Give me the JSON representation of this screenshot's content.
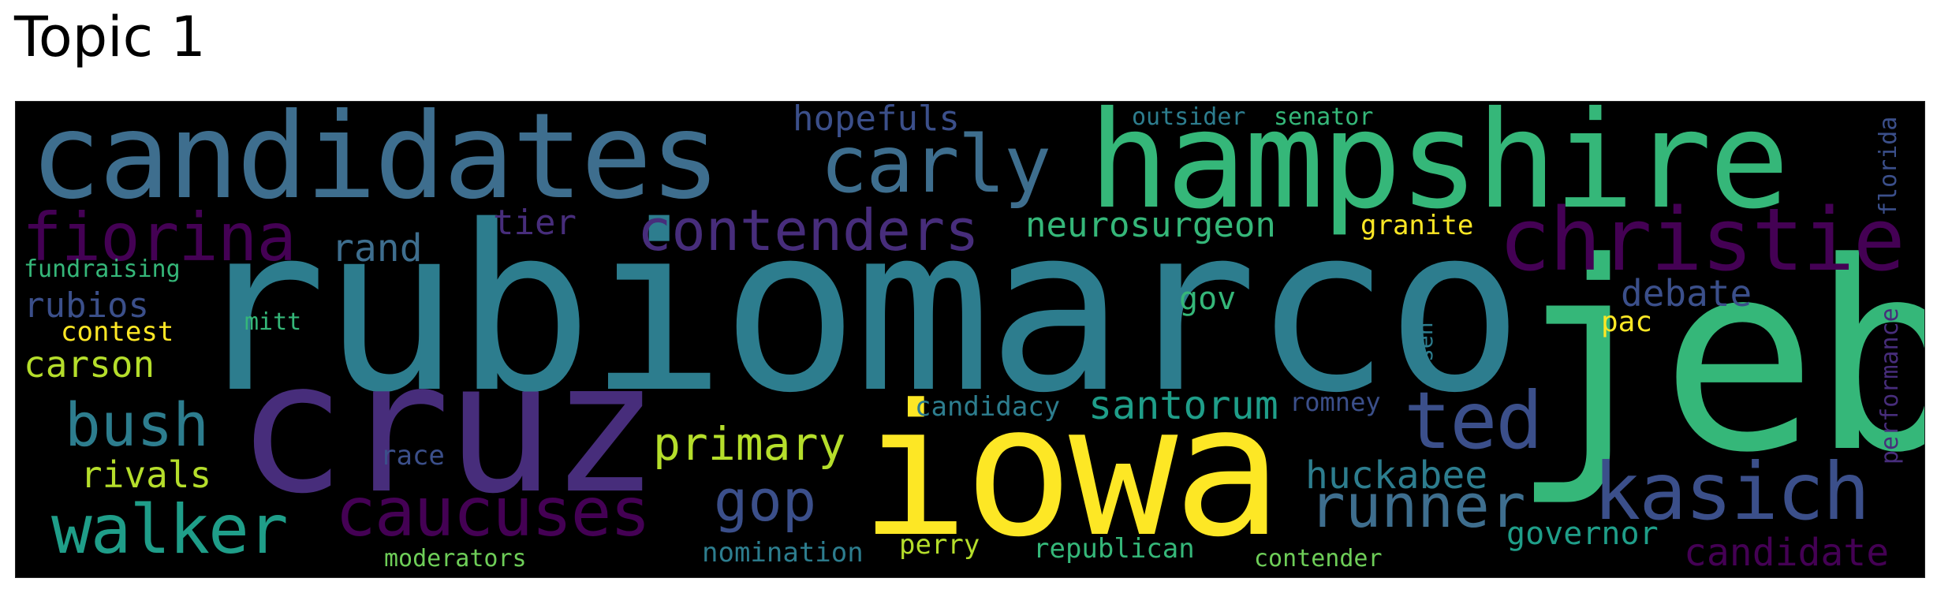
{
  "title": "Topic 1",
  "words": {
    "rubiomarco": "rubiomarco",
    "jeb": "jeb",
    "iowa": "iowa",
    "cruz": "cruz",
    "hampshire": "hampshire",
    "candidates": "candidates",
    "christie": "christie",
    "carly": "carly",
    "kasich": "kasich",
    "contenders": "contenders",
    "fiorina": "fiorina",
    "walker": "walker",
    "caucuses": "caucuses",
    "ted": "ted",
    "runner": "runner",
    "bush": "bush",
    "gop": "gop",
    "primary": "primary",
    "neurosurgeon": "neurosurgeon",
    "santorum": "santorum",
    "huckabee": "huckabee",
    "candidate": "candidate",
    "debate": "debate",
    "carson": "carson",
    "rand": "rand",
    "governor": "governor",
    "rivals": "rivals",
    "hopefuls": "hopefuls",
    "tier": "tier",
    "rubios": "rubios",
    "gov": "gov",
    "nomination": "nomination",
    "republican": "republican",
    "candidacy": "candidacy",
    "contest": "contest",
    "granite": "granite",
    "romney": "romney",
    "perry": "perry",
    "race": "race",
    "fundraising": "fundraising",
    "outsider": "outsider",
    "senator": "senator",
    "moderators": "moderators",
    "contender": "contender",
    "pac": "pac",
    "mitt": "mitt",
    "sen": "sen",
    "florida": "florida",
    "performance": "performance"
  },
  "colors": {
    "dark_purple": "#440154",
    "purple": "#472d7b",
    "indigo": "#3b4f8a",
    "blue": "#3e6e8e",
    "teal": "#2d7d8e",
    "teal_green": "#1f9e89",
    "green": "#35b779",
    "light_green": "#6ece58",
    "yellow_green": "#b5de2b",
    "yellow": "#fde725"
  }
}
